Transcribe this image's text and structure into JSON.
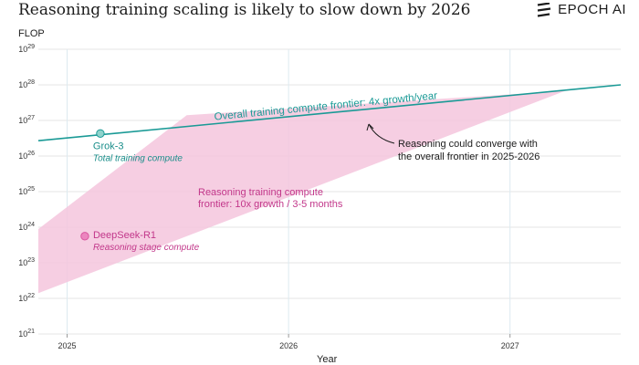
{
  "header": {
    "title": "Reasoning training scaling is likely to slow down by 2026",
    "brand": "EPOCH AI",
    "brand_icon": "epoch-ai-logo-icon"
  },
  "chart_data": {
    "type": "line",
    "title": "Reasoning training scaling is likely to slow down by 2026",
    "xlabel": "Year",
    "ylabel": "FLOP",
    "xlim": [
      2024.87,
      2027.5
    ],
    "ylim": [
      1e+21,
      1e+29
    ],
    "yscale": "log",
    "grid": true,
    "x_ticks": [
      {
        "value": 2025,
        "label": "2025"
      },
      {
        "value": 2026,
        "label": "2026"
      },
      {
        "value": 2027,
        "label": "2027"
      }
    ],
    "y_ticks": [
      {
        "exp": 21,
        "base": "10",
        "sup": "21"
      },
      {
        "exp": 22,
        "base": "10",
        "sup": "22"
      },
      {
        "exp": 23,
        "base": "10",
        "sup": "23"
      },
      {
        "exp": 24,
        "base": "10",
        "sup": "24"
      },
      {
        "exp": 25,
        "base": "10",
        "sup": "25"
      },
      {
        "exp": 26,
        "base": "10",
        "sup": "26"
      },
      {
        "exp": 27,
        "base": "10",
        "sup": "27"
      },
      {
        "exp": 28,
        "base": "10",
        "sup": "28"
      },
      {
        "exp": 29,
        "base": "10",
        "sup": "29"
      }
    ],
    "frontier_line": {
      "name": "Overall training compute frontier: 4x growth/year",
      "color": "#1a9a96",
      "points": [
        {
          "x": 2024.87,
          "y": 2.7e+26
        },
        {
          "x": 2027.5,
          "y": 1e+28
        }
      ]
    },
    "reasoning_band": {
      "name": "Reasoning training compute frontier: 10x growth / 3-5 months",
      "label_lines": [
        "Reasoning training compute",
        "frontier: 10x growth / 3-5 months"
      ],
      "color": "#f4c6dd",
      "label_color": "#c2378a",
      "polygon": [
        {
          "x": 2024.87,
          "y": 1.4e+22
        },
        {
          "x": 2024.87,
          "y": 8.9e+23
        },
        {
          "x": 2025.54,
          "y": 1.4e+27
        },
        {
          "x": 2027.25,
          "y": 6.8e+27
        }
      ]
    },
    "points": [
      {
        "name": "Grok-3",
        "sublabel": "Total training compute",
        "x": 2025.15,
        "y": 4.3e+26,
        "color": "#1a9a96",
        "fill": "#8fd3cc"
      },
      {
        "name": "DeepSeek-R1",
        "sublabel": "Reasoning stage compute",
        "x": 2025.08,
        "y": 5.6e+23,
        "color": "#d9559f",
        "fill": "#ec86bf"
      }
    ],
    "annotations": [
      {
        "text_lines": [
          "Reasoning could converge with",
          "the overall frontier in 2025-2026"
        ],
        "color": "#1c1c1c"
      }
    ]
  }
}
